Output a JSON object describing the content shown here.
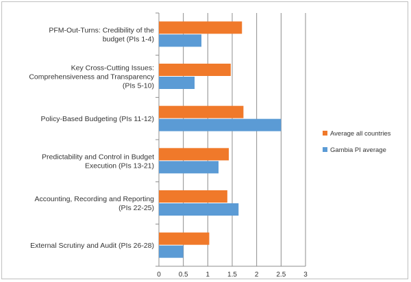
{
  "chart_data": {
    "type": "bar",
    "orientation": "horizontal",
    "categories": [
      [
        "PFM-Out-Turns: Credibility of the",
        "budget (PIs 1-4)"
      ],
      [
        "Key Cross-Cutting Issues:",
        "Comprehensiveness and Transparency",
        "(PIs 5-10)"
      ],
      [
        "Policy-Based Budgeting (PIs 11-12)"
      ],
      [
        "Predictability and Control in Budget",
        "Execution (PIs 13-21)"
      ],
      [
        "Accounting, Recording and Reporting",
        "(PIs 22-25)"
      ],
      [
        "External Scrutiny and Audit (PIs 26-28)"
      ]
    ],
    "series": [
      {
        "name": "Average all countries",
        "color": "#f0792a",
        "values": [
          1.7,
          1.47,
          1.73,
          1.43,
          1.4,
          1.03
        ]
      },
      {
        "name": "Gambia PI average",
        "color": "#5b9bd5",
        "values": [
          0.87,
          0.73,
          2.5,
          1.22,
          1.63,
          0.5
        ]
      }
    ],
    "xlim": [
      0,
      3
    ],
    "ticks": [
      "0",
      "0.5",
      "1",
      "1.5",
      "2",
      "2.5",
      "3"
    ],
    "grid": true,
    "legend_position": "right",
    "title": "",
    "xlabel": "",
    "ylabel": ""
  }
}
